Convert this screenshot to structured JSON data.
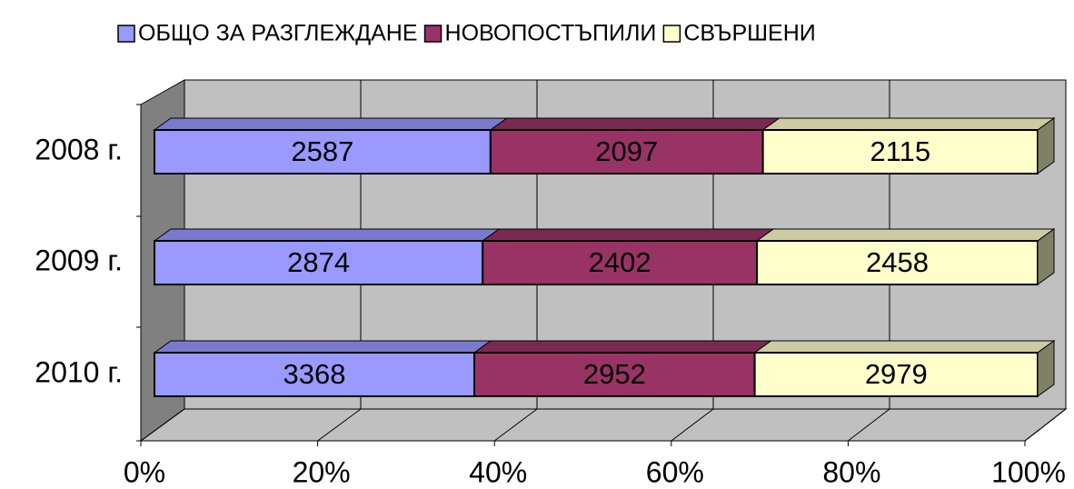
{
  "chart_data": {
    "type": "bar",
    "orientation": "horizontal",
    "stacked": "percent",
    "categories": [
      "2008 г.",
      "2009 г.",
      "2010 г."
    ],
    "series": [
      {
        "name": "ОБЩО ЗА РАЗГЛЕЖДАНЕ",
        "color": "#9999ff",
        "values": [
          2587,
          2874,
          3368
        ]
      },
      {
        "name": "НОВОПОСТЪПИЛИ",
        "color": "#993366",
        "values": [
          2097,
          2402,
          2952
        ]
      },
      {
        "name": "СВЪРШЕНИ",
        "color": "#ffffcc",
        "values": [
          2115,
          2458,
          2979
        ]
      }
    ],
    "xlim": [
      0,
      100
    ],
    "xticks": [
      {
        "value": 0,
        "label": "0%"
      },
      {
        "value": 20,
        "label": "20%"
      },
      {
        "value": 40,
        "label": "40%"
      },
      {
        "value": 60,
        "label": "60%"
      },
      {
        "value": 80,
        "label": "80%"
      },
      {
        "value": 100,
        "label": "100%"
      }
    ],
    "grid": true,
    "legend": "top"
  }
}
